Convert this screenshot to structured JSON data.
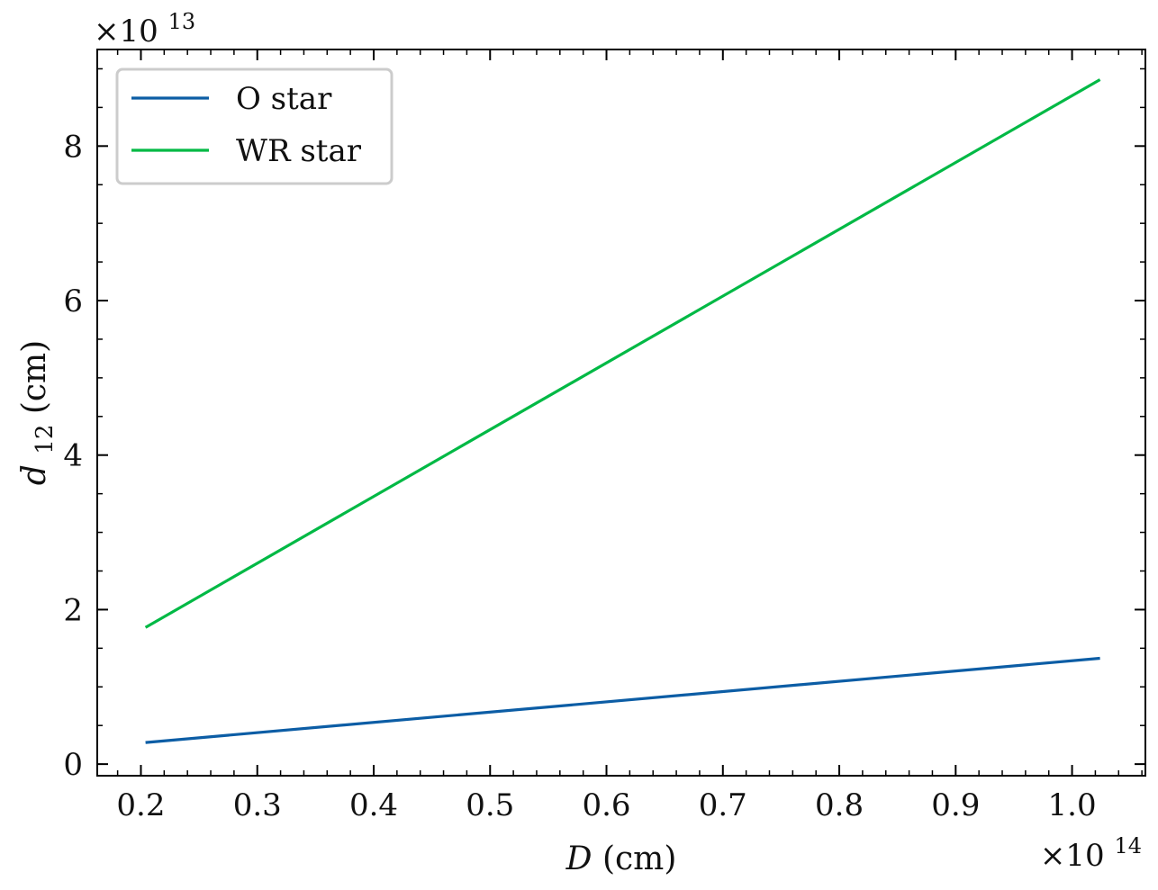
{
  "chart_data": {
    "type": "line",
    "xlabel_var": "D",
    "xlabel_unit": "(cm)",
    "ylabel_var": "d",
    "ylabel_sub": "12",
    "ylabel_unit": "(cm)",
    "x_offset": {
      "prefix": "×10",
      "exp": "14"
    },
    "y_offset": {
      "prefix": "×10",
      "exp": "13"
    },
    "xlim": [
      0.1625,
      1.063
    ],
    "ylim": [
      -0.15,
      9.25
    ],
    "x_ticks": [
      "0.2",
      "0.3",
      "0.4",
      "0.5",
      "0.6",
      "0.7",
      "0.8",
      "0.9",
      "1.0"
    ],
    "x_tick_values": [
      0.2,
      0.3,
      0.4,
      0.5,
      0.6,
      0.7,
      0.8,
      0.9,
      1.0
    ],
    "y_ticks": [
      "0",
      "2",
      "4",
      "6",
      "8"
    ],
    "y_tick_values": [
      0,
      2,
      4,
      6,
      8
    ],
    "legend_position": "upper-left",
    "series": [
      {
        "name": "O star",
        "color": "#0C5DA5",
        "x": [
          0.204,
          1.024
        ],
        "y": [
          0.28,
          1.37
        ]
      },
      {
        "name": "WR star",
        "color": "#00B945",
        "x": [
          0.204,
          1.024
        ],
        "y": [
          1.77,
          8.86
        ]
      }
    ]
  }
}
